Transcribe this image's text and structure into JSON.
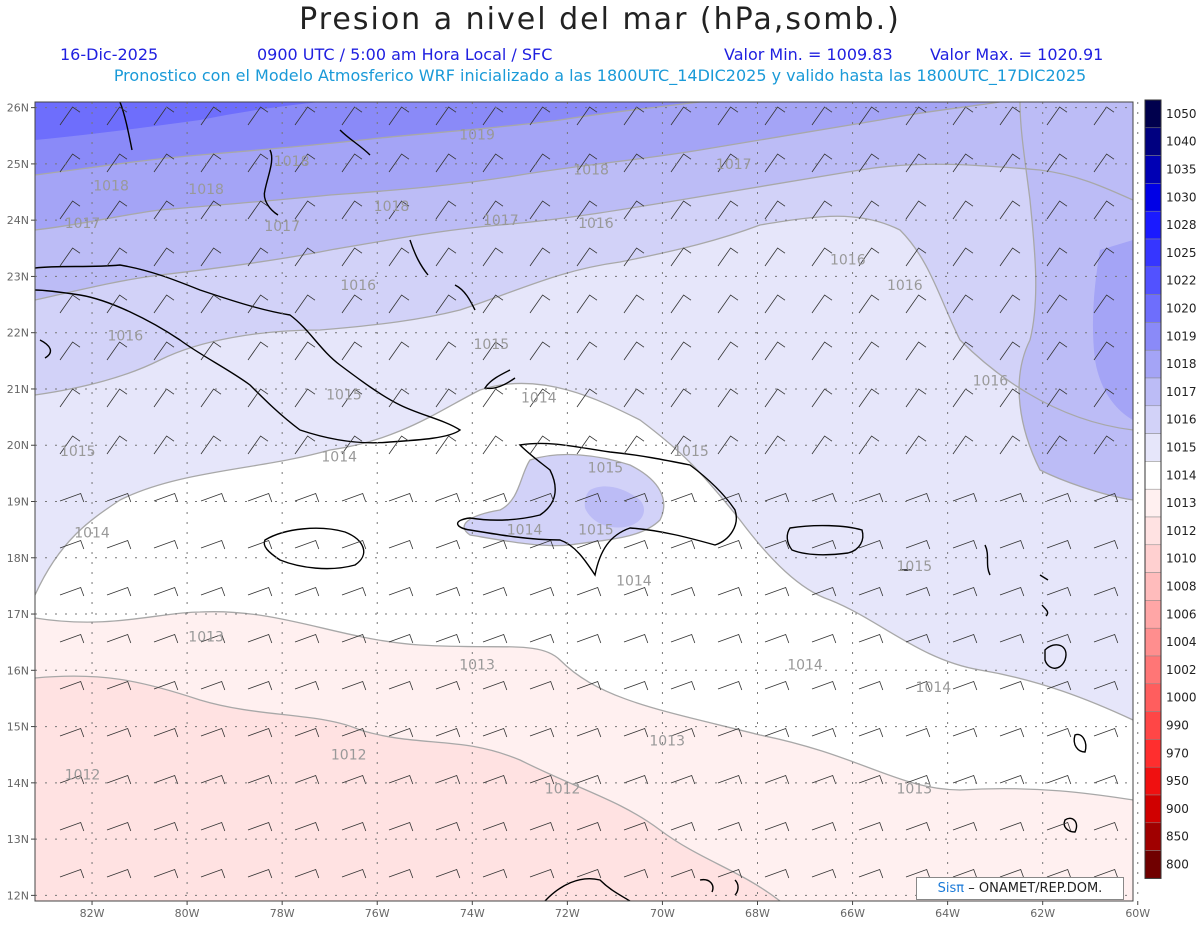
{
  "title": "Presion a nivel del mar (hPa,somb.)",
  "header": {
    "date": "16-Dic-2025",
    "time": "0900 UTC / 5:00 am Hora Local / SFC",
    "min": "Valor Min. = 1009.83",
    "max": "Valor Max. = 1020.91",
    "model": "Pronostico con el Modelo Atmosferico WRF inicializado a las 1800UTC_14DIC2025 y valido hasta las  1800UTC_17DIC2025"
  },
  "lat_labels": [
    "26N",
    "25N",
    "24N",
    "23N",
    "22N",
    "21N",
    "20N",
    "19N",
    "18N",
    "17N",
    "16N",
    "15N",
    "14N",
    "13N",
    "12N"
  ],
  "lon_labels": [
    "82W",
    "80W",
    "78W",
    "76W",
    "74W",
    "72W",
    "70W",
    "68W",
    "66W",
    "64W",
    "62W",
    "60W"
  ],
  "legend": [
    {
      "value": "1050",
      "color": "#00004d"
    },
    {
      "value": "1040",
      "color": "#000080"
    },
    {
      "value": "1035",
      "color": "#0000b4"
    },
    {
      "value": "1030",
      "color": "#0000e6"
    },
    {
      "value": "1028",
      "color": "#1a1aff"
    },
    {
      "value": "1025",
      "color": "#3636ff"
    },
    {
      "value": "1022",
      "color": "#5252ff"
    },
    {
      "value": "1020",
      "color": "#6e6efc"
    },
    {
      "value": "1019",
      "color": "#8a8af8"
    },
    {
      "value": "1018",
      "color": "#a4a4f6"
    },
    {
      "value": "1017",
      "color": "#bcbcf6"
    },
    {
      "value": "1016",
      "color": "#d2d2f8"
    },
    {
      "value": "1015",
      "color": "#e6e6fa"
    },
    {
      "value": "1014",
      "color": "#ffffff"
    },
    {
      "value": "1013",
      "color": "#fff0f0"
    },
    {
      "value": "1012",
      "color": "#ffe2e2"
    },
    {
      "value": "1010",
      "color": "#ffd0d0"
    },
    {
      "value": "1008",
      "color": "#ffbcbc"
    },
    {
      "value": "1006",
      "color": "#ffa6a6"
    },
    {
      "value": "1004",
      "color": "#ff8e8e"
    },
    {
      "value": "1002",
      "color": "#ff7676"
    },
    {
      "value": "1000",
      "color": "#ff5e5e"
    },
    {
      "value": "990",
      "color": "#ff4646"
    },
    {
      "value": "970",
      "color": "#ff2e2e"
    },
    {
      "value": "950",
      "color": "#f01010"
    },
    {
      "value": "900",
      "color": "#d00000"
    },
    {
      "value": "850",
      "color": "#a00000"
    },
    {
      "value": "800",
      "color": "#700000"
    }
  ],
  "contour_labels": [
    {
      "text": "1019",
      "lat": 25.52,
      "lon": -73.9
    },
    {
      "text": "1018",
      "lat": 25.05,
      "lon": -77.8
    },
    {
      "text": "1018",
      "lat": 24.55,
      "lon": -79.6
    },
    {
      "text": "1018",
      "lat": 24.62,
      "lon": -81.6
    },
    {
      "text": "1018",
      "lat": 24.25,
      "lon": -75.7
    },
    {
      "text": "1018",
      "lat": 24.9,
      "lon": -71.5
    },
    {
      "text": "1017",
      "lat": 25.0,
      "lon": -68.5
    },
    {
      "text": "1017",
      "lat": 23.9,
      "lon": -78.0
    },
    {
      "text": "1017",
      "lat": 23.95,
      "lon": -82.2
    },
    {
      "text": "1017",
      "lat": 24.0,
      "lon": -73.4
    },
    {
      "text": "1016",
      "lat": 23.95,
      "lon": -71.4
    },
    {
      "text": "1016",
      "lat": 23.3,
      "lon": -66.1
    },
    {
      "text": "1016",
      "lat": 22.85,
      "lon": -64.9
    },
    {
      "text": "1016",
      "lat": 22.85,
      "lon": -76.4
    },
    {
      "text": "1016",
      "lat": 21.95,
      "lon": -81.3
    },
    {
      "text": "1016",
      "lat": 21.15,
      "lon": -63.1
    },
    {
      "text": "1015",
      "lat": 21.8,
      "lon": -73.6
    },
    {
      "text": "1015",
      "lat": 20.9,
      "lon": -76.7
    },
    {
      "text": "1015",
      "lat": 19.9,
      "lon": -82.3
    },
    {
      "text": "1015",
      "lat": 19.9,
      "lon": -69.4
    },
    {
      "text": "1015",
      "lat": 19.6,
      "lon": -71.2
    },
    {
      "text": "1015",
      "lat": 18.5,
      "lon": -71.4
    },
    {
      "text": "1015",
      "lat": 17.85,
      "lon": -64.7
    },
    {
      "text": "1014",
      "lat": 20.85,
      "lon": -72.6
    },
    {
      "text": "1014",
      "lat": 19.8,
      "lon": -76.8
    },
    {
      "text": "1014",
      "lat": 18.5,
      "lon": -72.9
    },
    {
      "text": "1014",
      "lat": 18.45,
      "lon": -82.0
    },
    {
      "text": "1014",
      "lat": 17.6,
      "lon": -70.6
    },
    {
      "text": "1014",
      "lat": 16.1,
      "lon": -67.0
    },
    {
      "text": "1014",
      "lat": 15.7,
      "lon": -64.3
    },
    {
      "text": "1013",
      "lat": 16.6,
      "lon": -79.6
    },
    {
      "text": "1013",
      "lat": 16.1,
      "lon": -73.9
    },
    {
      "text": "1013",
      "lat": 14.75,
      "lon": -69.9
    },
    {
      "text": "1013",
      "lat": 13.9,
      "lon": -64.7
    },
    {
      "text": "1012",
      "lat": 14.5,
      "lon": -76.6
    },
    {
      "text": "1012",
      "lat": 14.15,
      "lon": -82.2
    },
    {
      "text": "1012",
      "lat": 13.9,
      "lon": -72.1
    }
  ],
  "credit": {
    "brand": "Sisπ",
    "org": "– ONAMET/REP.DOM."
  }
}
